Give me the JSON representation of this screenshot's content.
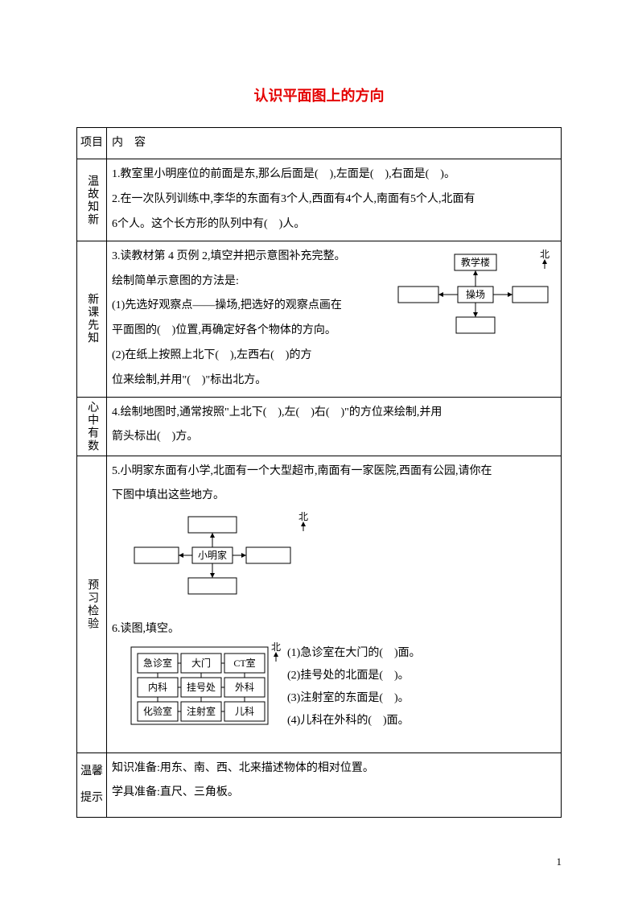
{
  "title": "认识平面图上的方向",
  "header": {
    "col1": "项目",
    "col2": "内　容"
  },
  "rows": {
    "wengu": {
      "label": "温故知新",
      "q1": "1.教室里小明座位的前面是东,那么后面是(　),左面是(　),右面是(　)。",
      "q2a": "2.在一次队列训练中,李华的东面有3个人,西面有4个人,南面有5个人,北面有",
      "q2b": "6个人。这个长方形的队列中有(　)人。"
    },
    "xinke": {
      "label": "新课先知",
      "l0": "3.读教材第 4 页例 2,填空并把示意图补充完整。",
      "l1": "绘制简单示意图的方法是:",
      "l2": "(1)先选好观察点——操场,把选好的观察点画在",
      "l3": "平面图的(　)位置,再确定好各个物体的方向。",
      "l4": "(2)在纸上按照上北下(　),左西右(　)的方",
      "l5": "位来绘制,并用\"(　)\"标出北方。",
      "diag": {
        "top": "教学楼",
        "center": "操场",
        "north": "北"
      }
    },
    "xinzhong": {
      "label": "心中有数",
      "l1": "4.绘制地图时,通常按照\"上北下(　),左(　)右(　)\"的方位来绘制,并用",
      "l2": "箭头标出(　)方。"
    },
    "yuxi": {
      "label": "预习检验",
      "l1": "5.小明家东面有小学,北面有一个大型超市,南面有一家医院,西面有公园,请你在",
      "l2": "下图中填出这些地方。",
      "diag5": {
        "center": "小明家",
        "north": "北"
      },
      "l3": "6.读图,填空。",
      "diag6": {
        "north": "北",
        "cells": [
          [
            "急诊室",
            "大门",
            "CT室"
          ],
          [
            "内科",
            "挂号处",
            "外科"
          ],
          [
            "化验室",
            "注射室",
            "儿科"
          ]
        ]
      },
      "q6_1": "(1)急诊室在大门的(　)面。",
      "q6_2": "(2)挂号处的北面是(　)。",
      "q6_3": "(3)注射室的东面是(　)。",
      "q6_4": "(4)儿科在外科的(　)面。"
    },
    "wenxin": {
      "label1": "温馨",
      "label2": "提示",
      "l1": "知识准备:用东、南、西、北来描述物体的相对位置。",
      "l2": "学具准备:直尺、三角板。"
    }
  },
  "pageNumber": "1"
}
